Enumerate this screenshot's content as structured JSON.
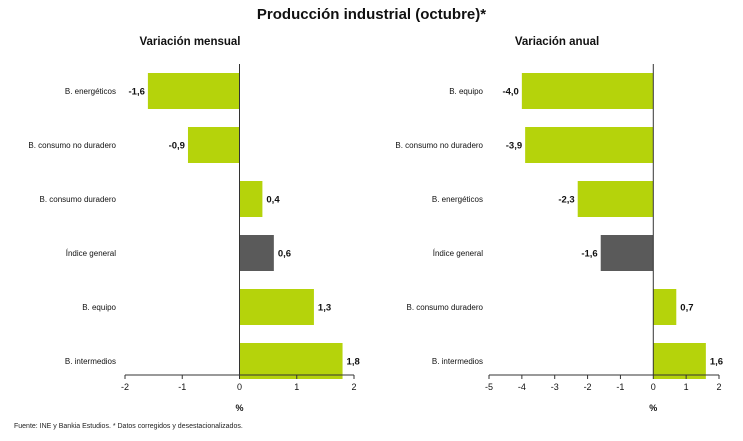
{
  "title": "Producción industrial (octubre)*",
  "footnote": "Fuente: INE y Bankia Estudios. * Datos corregidos y desestacionalizados.",
  "colors": {
    "bar": "#B5D30B",
    "highlight": "#5A5A5A",
    "axis": "#333333"
  },
  "chart_data": [
    {
      "type": "bar",
      "orientation": "horizontal",
      "title": "Variación mensual",
      "xlabel": "%",
      "xlim": [
        -2,
        2
      ],
      "ticks": [
        "-2",
        "-1",
        "0",
        "1",
        "2"
      ],
      "categories": [
        "B. energéticos",
        "B. consumo no duradero",
        "B. consumo duradero",
        "Índice general",
        "B. equipo",
        "B. intermedios"
      ],
      "values": [
        -1.6,
        -0.9,
        0.4,
        0.6,
        1.3,
        1.8
      ],
      "value_labels": [
        "-1,6",
        "-0,9",
        "0,4",
        "0,6",
        "1,3",
        "1,8"
      ],
      "highlight": "Índice general"
    },
    {
      "type": "bar",
      "orientation": "horizontal",
      "title": "Variación anual",
      "xlabel": "%",
      "xlim": [
        -5,
        2
      ],
      "ticks": [
        "-5",
        "-4",
        "-3",
        "-2",
        "-1",
        "0",
        "1",
        "2"
      ],
      "categories": [
        "B. equipo",
        "B. consumo no duradero",
        "B. energéticos",
        "Índice general",
        "B. consumo duradero",
        "B. intermedios"
      ],
      "values": [
        -4.0,
        -3.9,
        -2.3,
        -1.6,
        0.7,
        1.6
      ],
      "value_labels": [
        "-4,0",
        "-3,9",
        "-2,3",
        "-1,6",
        "0,7",
        "1,6"
      ],
      "highlight": "Índice general"
    }
  ]
}
